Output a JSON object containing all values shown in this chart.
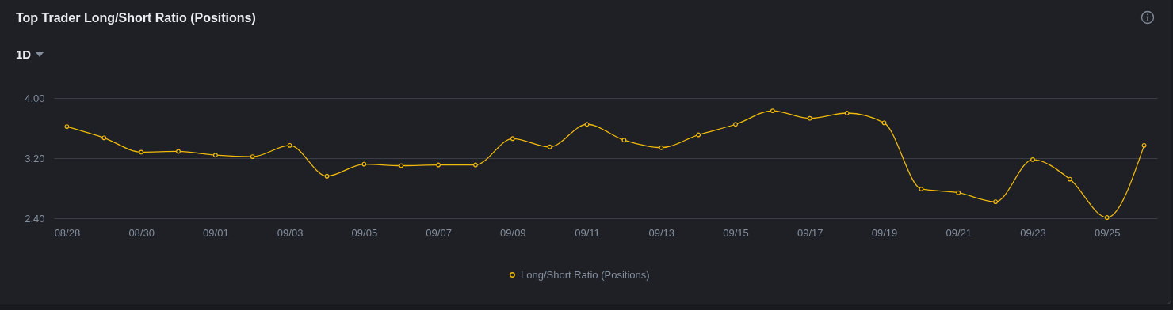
{
  "chart_data": {
    "type": "line",
    "title": "Top Trader Long/Short Ratio (Positions)",
    "annotations": [
      "1D"
    ],
    "categories": [
      "08/28",
      null,
      "08/30",
      null,
      "09/01",
      null,
      "09/03",
      null,
      "09/05",
      null,
      "09/07",
      null,
      "09/09",
      null,
      "09/11",
      null,
      "09/13",
      null,
      "09/15",
      null,
      "09/17",
      null,
      "09/19",
      null,
      "09/21",
      null,
      "09/23",
      null,
      "09/25",
      null
    ],
    "series": [
      {
        "name": "Long/Short Ratio (Positions)",
        "color": "#f0b90b",
        "values": [
          3.62,
          3.47,
          3.28,
          3.29,
          3.24,
          3.22,
          3.37,
          2.96,
          3.12,
          3.1,
          3.11,
          3.11,
          3.46,
          3.35,
          3.65,
          3.44,
          3.34,
          3.51,
          3.65,
          3.83,
          3.73,
          3.8,
          3.67,
          2.79,
          2.74,
          2.62,
          3.18,
          2.92,
          2.41,
          3.37
        ]
      }
    ],
    "ylim": [
      2.4,
      4.0
    ],
    "yticks": [
      {
        "value": 2.4,
        "label": "2.40"
      },
      {
        "value": 3.2,
        "label": "3.20"
      },
      {
        "value": 4.0,
        "label": "4.00"
      }
    ],
    "grid": "y",
    "legend": "bottom",
    "marker": "circle"
  }
}
